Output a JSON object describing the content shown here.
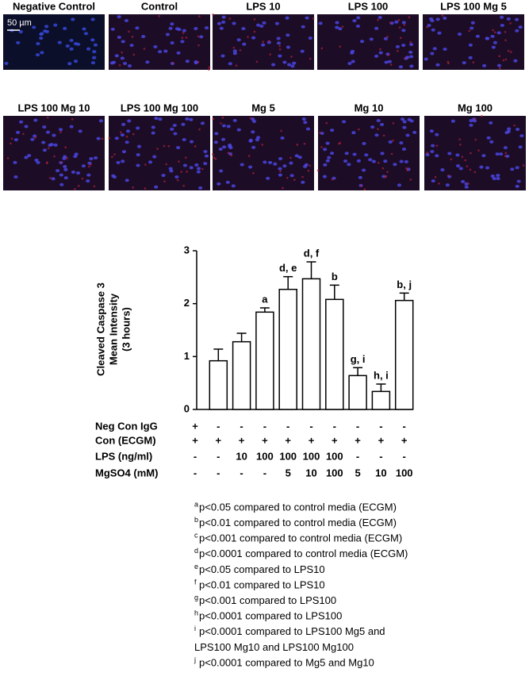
{
  "panels": [
    "Negative Control",
    "Control",
    "LPS 10",
    "LPS 100",
    "LPS 100 Mg 5",
    "LPS 100 Mg 10",
    "LPS 100 Mg 100",
    "Mg 5",
    "Mg 10",
    "Mg 100"
  ],
  "scale_bar": "50 µm",
  "chart_data": {
    "type": "bar",
    "y_label": [
      "Cleaved Caspase 3",
      "Mean Intensity",
      "(3 hours)"
    ],
    "categories": [
      null,
      null,
      null,
      null,
      null,
      null,
      null,
      null,
      null,
      null
    ],
    "values": [
      0,
      0.92,
      1.28,
      1.84,
      2.27,
      2.47,
      2.08,
      0.64,
      0.34,
      2.06
    ],
    "errors": [
      null,
      0.22,
      0.16,
      0.08,
      0.24,
      0.32,
      0.27,
      0.15,
      0.14,
      0.14
    ],
    "annotations": [
      null,
      null,
      null,
      "a",
      "d, e",
      "d, f",
      "b",
      "g, i",
      "h, i",
      "b, j"
    ],
    "color": "#ffffff",
    "edge_color": "#000000",
    "ylim": [
      0,
      3
    ],
    "yticks": [
      0,
      1,
      2,
      3
    ]
  },
  "conditions": [
    {
      "label": "Neg Con IgG",
      "cells": [
        "+",
        "-",
        "-",
        "-",
        "-",
        "-",
        "-",
        "-",
        "-",
        "-"
      ]
    },
    {
      "label": "Con (ECGM)",
      "cells": [
        "+",
        "+",
        "+",
        "+",
        "+",
        "+",
        "+",
        "+",
        "+",
        "+"
      ]
    },
    {
      "label": "LPS (ng/ml)",
      "cells": [
        "-",
        "-",
        "10",
        "100",
        "100",
        "100",
        "100",
        "-",
        "-",
        "-"
      ]
    },
    {
      "label": "MgSO4 (mM)",
      "cells": [
        "-",
        "-",
        "-",
        "-",
        "5",
        "10",
        "100",
        "5",
        "10",
        "100"
      ]
    }
  ],
  "footnotes": [
    {
      "mark": "a",
      "lines": [
        "p<0.05 compared to control media (ECGM)"
      ]
    },
    {
      "mark": "b",
      "lines": [
        "p<0.01 compared to control media (ECGM)"
      ]
    },
    {
      "mark": "c",
      "lines": [
        "p<0.001 compared to control media (ECGM)"
      ]
    },
    {
      "mark": "d",
      "lines": [
        "p<0.0001 compared to control media (ECGM)"
      ]
    },
    {
      "mark": "e",
      "lines": [
        "p<0.05 compared to LPS10"
      ]
    },
    {
      "mark": "f",
      "lines": [
        "p<0.01 compared to LPS10"
      ]
    },
    {
      "mark": "g",
      "lines": [
        "p<0.001 compared to LPS100"
      ]
    },
    {
      "mark": "h",
      "lines": [
        "p<0.0001 compared to LPS100"
      ]
    },
    {
      "mark": "i",
      "lines": [
        "p<0.0001 compared to LPS100 Mg5 and",
        "LPS100 Mg10 and LPS100 Mg100"
      ]
    },
    {
      "mark": "j",
      "lines": [
        "p<0.0001 compared to Mg5 and Mg10"
      ]
    }
  ]
}
